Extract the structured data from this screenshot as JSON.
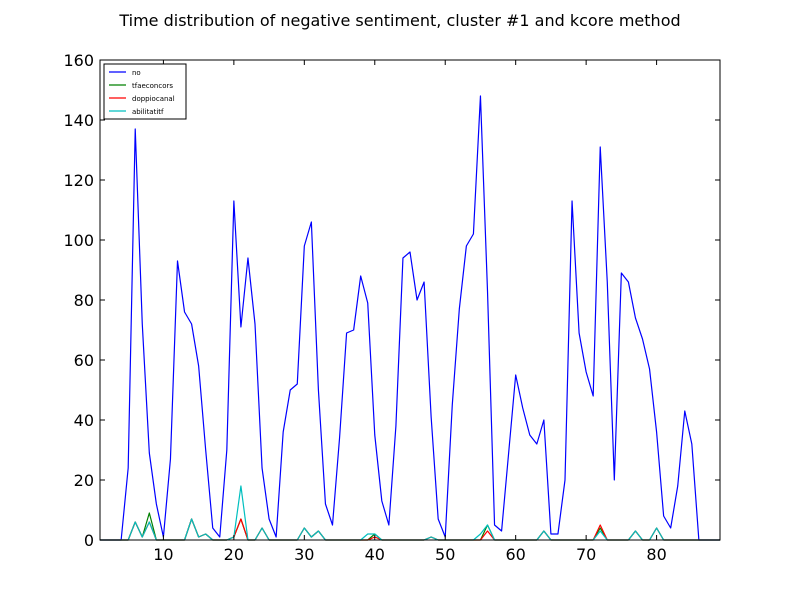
{
  "chart_data": {
    "type": "line",
    "title": "Time distribution of negative sentiment, cluster #1 and kcore method",
    "xlabel": "",
    "ylabel": "",
    "xlim": [
      1,
      89
    ],
    "ylim": [
      0,
      160
    ],
    "xticks": [
      10,
      20,
      30,
      40,
      50,
      60,
      70,
      80
    ],
    "yticks": [
      0,
      20,
      40,
      60,
      80,
      100,
      120,
      140,
      160
    ],
    "grid": false,
    "legend_position": "top-left",
    "x": [
      1,
      2,
      3,
      4,
      5,
      6,
      7,
      8,
      9,
      10,
      11,
      12,
      13,
      14,
      15,
      16,
      17,
      18,
      19,
      20,
      21,
      22,
      23,
      24,
      25,
      26,
      27,
      28,
      29,
      30,
      31,
      32,
      33,
      34,
      35,
      36,
      37,
      38,
      39,
      40,
      41,
      42,
      43,
      44,
      45,
      46,
      47,
      48,
      49,
      50,
      51,
      52,
      53,
      54,
      55,
      56,
      57,
      58,
      59,
      60,
      61,
      62,
      63,
      64,
      65,
      66,
      67,
      68,
      69,
      70,
      71,
      72,
      73,
      74,
      75,
      76,
      77,
      78,
      79,
      80,
      81,
      82,
      83,
      84,
      85,
      86,
      87,
      88,
      89
    ],
    "series": [
      {
        "name": "no",
        "color": "#0000ff",
        "values": [
          0,
          0,
          0,
          0,
          24,
          137,
          72,
          29,
          12,
          1,
          27,
          93,
          76,
          72,
          58,
          30,
          4,
          1,
          30,
          113,
          71,
          94,
          72,
          24,
          7,
          1,
          36,
          50,
          52,
          98,
          106,
          50,
          12,
          5,
          34,
          69,
          70,
          88,
          79,
          35,
          13,
          5,
          38,
          94,
          96,
          80,
          86,
          41,
          7,
          1,
          45,
          77,
          98,
          102,
          148,
          83,
          5,
          3,
          29,
          55,
          44,
          35,
          32,
          40,
          2,
          2,
          20,
          113,
          69,
          56,
          48,
          131,
          86,
          20,
          89,
          86,
          74,
          67,
          57,
          36,
          8,
          4,
          18,
          43,
          32,
          0,
          0,
          0,
          0
        ]
      },
      {
        "name": "tfaeconcors",
        "color": "#008000",
        "values": [
          0,
          0,
          0,
          0,
          0,
          6,
          1,
          9,
          0,
          0,
          0,
          0,
          0,
          7,
          1,
          2,
          0,
          0,
          0,
          1,
          7,
          0,
          0,
          4,
          0,
          0,
          0,
          0,
          0,
          4,
          1,
          3,
          0,
          0,
          0,
          0,
          0,
          0,
          0,
          2,
          0,
          0,
          0,
          0,
          0,
          0,
          0,
          1,
          0,
          0,
          0,
          0,
          0,
          0,
          0,
          5,
          0,
          0,
          0,
          0,
          0,
          0,
          0,
          3,
          0,
          0,
          0,
          0,
          0,
          0,
          0,
          4,
          0,
          0,
          0,
          0,
          3,
          0,
          0,
          4,
          0,
          0,
          0,
          0,
          0,
          0,
          0,
          0,
          0
        ]
      },
      {
        "name": "doppiocanal",
        "color": "#ff0000",
        "values": [
          0,
          0,
          0,
          0,
          0,
          6,
          1,
          6,
          0,
          0,
          0,
          0,
          0,
          7,
          1,
          2,
          0,
          0,
          0,
          1,
          7,
          0,
          0,
          4,
          0,
          0,
          0,
          0,
          0,
          4,
          1,
          3,
          0,
          0,
          0,
          0,
          0,
          0,
          0,
          1,
          0,
          0,
          0,
          0,
          0,
          0,
          0,
          1,
          0,
          0,
          0,
          0,
          0,
          0,
          0,
          3,
          0,
          0,
          0,
          0,
          0,
          0,
          0,
          3,
          0,
          0,
          0,
          0,
          0,
          0,
          0,
          5,
          0,
          0,
          0,
          0,
          3,
          0,
          0,
          4,
          0,
          0,
          0,
          0,
          0,
          0,
          0,
          0,
          0
        ]
      },
      {
        "name": "abilitatitf",
        "color": "#00bfbf",
        "values": [
          0,
          0,
          0,
          0,
          0,
          6,
          1,
          6,
          0,
          0,
          0,
          0,
          0,
          7,
          1,
          2,
          0,
          0,
          0,
          1,
          18,
          0,
          0,
          4,
          0,
          0,
          0,
          0,
          0,
          4,
          1,
          3,
          0,
          0,
          0,
          0,
          0,
          0,
          2,
          2,
          0,
          0,
          0,
          0,
          0,
          0,
          0,
          1,
          0,
          0,
          0,
          0,
          0,
          0,
          2,
          5,
          0,
          0,
          0,
          0,
          0,
          0,
          0,
          3,
          0,
          0,
          0,
          0,
          0,
          0,
          0,
          3,
          0,
          0,
          0,
          0,
          3,
          0,
          0,
          4,
          0,
          0,
          0,
          0,
          0,
          0,
          0,
          0,
          0
        ]
      }
    ]
  }
}
